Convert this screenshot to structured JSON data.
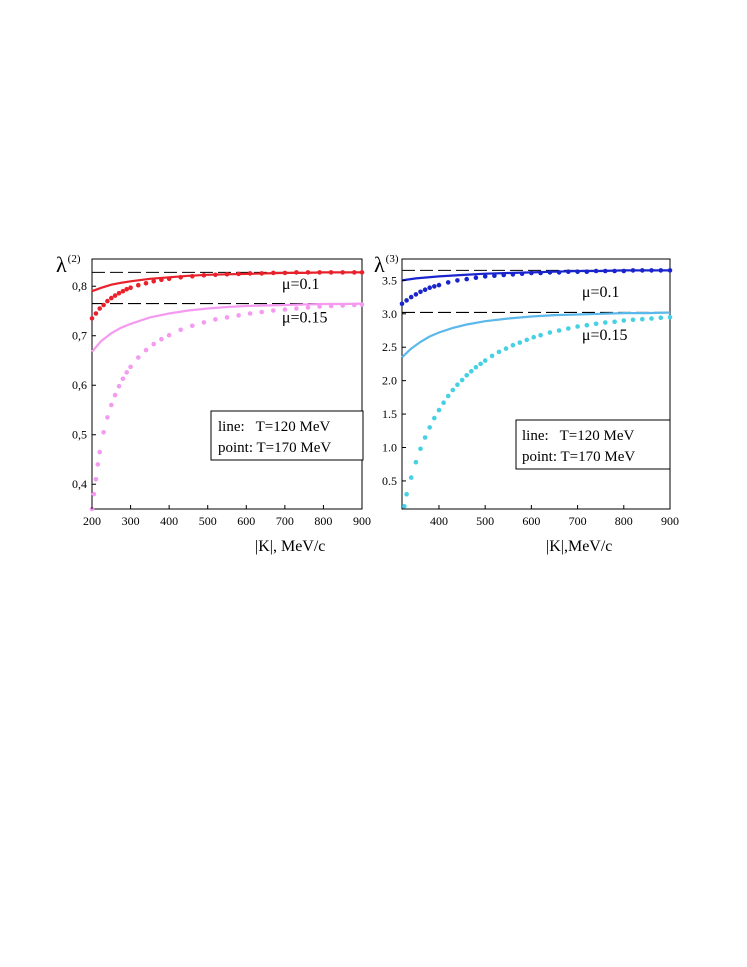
{
  "chart_data": [
    {
      "type": "line",
      "ylabel": "λ",
      "ylabel_sup": "(2)",
      "xlabel": "|K|, MeV/c",
      "xlim": [
        200,
        900
      ],
      "ylim": [
        0.35,
        0.855
      ],
      "x_ticks": [
        200,
        300,
        400,
        500,
        600,
        700,
        800,
        900
      ],
      "y_ticks": [
        {
          "v": 0.4,
          "label": "0,4"
        },
        {
          "v": 0.5,
          "label": "0,5"
        },
        {
          "v": 0.6,
          "label": "0,6"
        },
        {
          "v": 0.7,
          "label": "0,7"
        },
        {
          "v": 0.8,
          "label": "0,8"
        }
      ],
      "asymptotes": [
        0.828,
        0.765
      ],
      "annotations": [
        {
          "text": "μ=0.1",
          "x": 765,
          "y": 0.805
        },
        {
          "text": "μ=0.15",
          "x": 765,
          "y": 0.737
        }
      ],
      "legend": {
        "position": "bottom-right",
        "lines": [
          "line:   T=120 MeV",
          "point: T=170 MeV"
        ]
      },
      "series": [
        {
          "style": "line",
          "color": "#e8212b",
          "x": [
            200,
            225,
            250,
            275,
            300,
            350,
            400,
            450,
            500,
            550,
            600,
            650,
            700,
            750,
            800,
            850,
            900
          ],
          "y": [
            0.79,
            0.797,
            0.803,
            0.807,
            0.81,
            0.815,
            0.818,
            0.821,
            0.823,
            0.824,
            0.825,
            0.826,
            0.827,
            0.827,
            0.828,
            0.828,
            0.828
          ]
        },
        {
          "style": "points",
          "color": "#e8212b",
          "x": [
            200,
            210,
            220,
            230,
            240,
            250,
            260,
            270,
            280,
            290,
            300,
            320,
            340,
            360,
            380,
            400,
            430,
            460,
            490,
            520,
            550,
            580,
            610,
            640,
            670,
            700,
            730,
            760,
            790,
            820,
            850,
            880,
            900
          ],
          "y": [
            0.735,
            0.745,
            0.755,
            0.762,
            0.77,
            0.776,
            0.781,
            0.786,
            0.79,
            0.794,
            0.797,
            0.802,
            0.806,
            0.81,
            0.813,
            0.815,
            0.818,
            0.82,
            0.822,
            0.823,
            0.824,
            0.825,
            0.826,
            0.826,
            0.827,
            0.827,
            0.828,
            0.828,
            0.828,
            0.828,
            0.828,
            0.828,
            0.828
          ]
        },
        {
          "style": "line",
          "color": "#f49af0",
          "x": [
            200,
            225,
            250,
            275,
            300,
            350,
            400,
            450,
            500,
            550,
            600,
            650,
            700,
            750,
            800,
            850,
            900
          ],
          "y": [
            0.668,
            0.69,
            0.705,
            0.716,
            0.724,
            0.737,
            0.745,
            0.751,
            0.755,
            0.758,
            0.76,
            0.761,
            0.762,
            0.763,
            0.764,
            0.764,
            0.765
          ]
        },
        {
          "style": "points",
          "color": "#f49af0",
          "x": [
            200,
            205,
            210,
            215,
            220,
            230,
            240,
            250,
            260,
            270,
            280,
            290,
            300,
            320,
            340,
            360,
            380,
            400,
            430,
            460,
            490,
            520,
            550,
            580,
            610,
            640,
            670,
            700,
            730,
            760,
            790,
            820,
            850,
            880,
            900
          ],
          "y": [
            0.35,
            0.38,
            0.41,
            0.44,
            0.465,
            0.505,
            0.535,
            0.56,
            0.58,
            0.598,
            0.613,
            0.626,
            0.637,
            0.656,
            0.671,
            0.683,
            0.693,
            0.701,
            0.712,
            0.72,
            0.727,
            0.733,
            0.737,
            0.741,
            0.745,
            0.748,
            0.751,
            0.753,
            0.755,
            0.757,
            0.759,
            0.76,
            0.761,
            0.762,
            0.763
          ]
        }
      ]
    },
    {
      "type": "line",
      "ylabel": "λ",
      "ylabel_sup": "(3)",
      "xlabel": "|K|,MeV/c",
      "xlim": [
        320,
        900
      ],
      "ylim": [
        0.08,
        3.82
      ],
      "x_ticks": [
        400,
        500,
        600,
        700,
        800,
        900
      ],
      "y_ticks": [
        {
          "v": 0.5,
          "label": "0.5"
        },
        {
          "v": 1.0,
          "label": "1.0"
        },
        {
          "v": 1.5,
          "label": "1.5"
        },
        {
          "v": 2.0,
          "label": "2.0"
        },
        {
          "v": 2.5,
          "label": "2.5"
        },
        {
          "v": 3.0,
          "label": "3.0"
        },
        {
          "v": 3.5,
          "label": "3.5"
        }
      ],
      "asymptotes": [
        3.65,
        3.02
      ],
      "annotations": [
        {
          "text": "μ=0.1",
          "x": 770,
          "y": 3.33
        },
        {
          "text": "μ=0.15",
          "x": 770,
          "y": 2.68
        }
      ],
      "legend": {
        "position": "bottom-right",
        "lines": [
          "line:   T=120 MeV",
          "point: T=170 MeV"
        ]
      },
      "series": [
        {
          "style": "line",
          "color": "#1a24cc",
          "x": [
            320,
            350,
            400,
            450,
            500,
            550,
            600,
            650,
            700,
            750,
            800,
            850,
            900
          ],
          "y": [
            3.5,
            3.53,
            3.56,
            3.58,
            3.6,
            3.61,
            3.62,
            3.63,
            3.64,
            3.64,
            3.65,
            3.65,
            3.65
          ]
        },
        {
          "style": "points",
          "color": "#1a24cc",
          "x": [
            320,
            330,
            340,
            350,
            360,
            370,
            380,
            390,
            400,
            420,
            440,
            460,
            480,
            500,
            520,
            540,
            560,
            580,
            600,
            620,
            640,
            660,
            680,
            700,
            720,
            740,
            760,
            780,
            800,
            820,
            840,
            860,
            880,
            900
          ],
          "y": [
            3.15,
            3.2,
            3.25,
            3.29,
            3.33,
            3.36,
            3.39,
            3.41,
            3.43,
            3.47,
            3.5,
            3.52,
            3.54,
            3.56,
            3.57,
            3.58,
            3.59,
            3.6,
            3.61,
            3.61,
            3.62,
            3.62,
            3.63,
            3.63,
            3.63,
            3.64,
            3.64,
            3.64,
            3.64,
            3.65,
            3.65,
            3.65,
            3.65,
            3.65
          ]
        },
        {
          "style": "line",
          "color": "#5bb8ea",
          "x": [
            320,
            340,
            360,
            380,
            400,
            430,
            460,
            500,
            550,
            600,
            650,
            700,
            750,
            800,
            850,
            900
          ],
          "y": [
            2.35,
            2.48,
            2.58,
            2.66,
            2.72,
            2.79,
            2.84,
            2.89,
            2.93,
            2.96,
            2.98,
            2.99,
            3.0,
            3.01,
            3.01,
            3.02
          ]
        },
        {
          "style": "points",
          "color": "#45d0e4",
          "x": [
            325,
            330,
            340,
            350,
            360,
            370,
            380,
            390,
            400,
            410,
            420,
            430,
            440,
            450,
            460,
            470,
            480,
            490,
            500,
            515,
            530,
            545,
            560,
            575,
            590,
            605,
            620,
            640,
            660,
            680,
            700,
            720,
            740,
            760,
            780,
            800,
            820,
            840,
            860,
            880,
            900
          ],
          "y": [
            0.12,
            0.3,
            0.55,
            0.78,
            0.98,
            1.15,
            1.3,
            1.44,
            1.56,
            1.67,
            1.77,
            1.86,
            1.94,
            2.01,
            2.08,
            2.14,
            2.2,
            2.25,
            2.3,
            2.37,
            2.43,
            2.48,
            2.53,
            2.57,
            2.61,
            2.65,
            2.68,
            2.72,
            2.75,
            2.78,
            2.81,
            2.83,
            2.85,
            2.87,
            2.88,
            2.9,
            2.91,
            2.92,
            2.93,
            2.94,
            2.95
          ]
        }
      ]
    }
  ]
}
